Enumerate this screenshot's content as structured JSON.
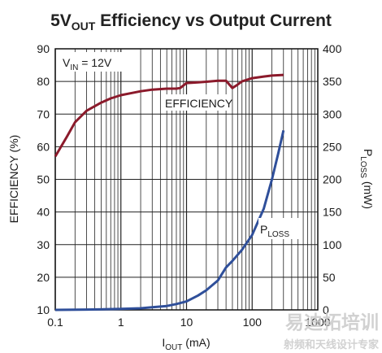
{
  "chart_data": {
    "type": "line",
    "title": {
      "main": "5V",
      "sub": "OUT",
      "rest": " Efficiency vs Output Current"
    },
    "x_axis": {
      "label_main": "I",
      "label_sub": "OUT",
      "label_rest": " (mA)",
      "scale": "log",
      "range": [
        0.1,
        1000
      ],
      "tick_labels": [
        "0.1",
        "1",
        "10",
        "100",
        "1000"
      ]
    },
    "y_left": {
      "label": "EFFICIENCY (%)",
      "range": [
        10,
        90
      ],
      "tick_labels": [
        "10",
        "20",
        "30",
        "40",
        "50",
        "60",
        "70",
        "80",
        "90"
      ]
    },
    "y_right": {
      "label_main": "P",
      "label_sub": "LOSS",
      "label_rest": " (mW)",
      "range": [
        0,
        400
      ],
      "tick_labels": [
        "0",
        "50",
        "100",
        "150",
        "200",
        "250",
        "300",
        "350",
        "400"
      ]
    },
    "annotation": {
      "main": "V",
      "sub": "IN",
      "rest": " = 12V"
    },
    "grid": true,
    "series": [
      {
        "name": "EFFICIENCY",
        "axis": "left",
        "color": "#8b1a2b",
        "x": [
          0.1,
          0.15,
          0.2,
          0.3,
          0.5,
          0.7,
          1,
          1.5,
          2,
          3,
          5,
          7,
          8,
          10,
          15,
          20,
          30,
          40,
          50,
          60,
          70,
          100,
          150,
          200,
          300
        ],
        "y": [
          57,
          63,
          67.5,
          71,
          73.5,
          74.8,
          75.8,
          76.5,
          77,
          77.5,
          77.8,
          77.8,
          78,
          79.5,
          79.7,
          79.9,
          80.2,
          80.2,
          78,
          79,
          80,
          81,
          81.5,
          81.8,
          82
        ]
      },
      {
        "name": "P",
        "name_sub": "LOSS",
        "axis": "right",
        "color": "#2f4f9a",
        "x": [
          0.1,
          0.3,
          1,
          2,
          3,
          5,
          7,
          10,
          15,
          20,
          30,
          40,
          50,
          70,
          100,
          150,
          200,
          250,
          300
        ],
        "y": [
          0,
          0.5,
          1.5,
          2.5,
          4,
          6,
          9,
          13,
          22,
          30,
          45,
          65,
          75,
          92,
          115,
          155,
          200,
          240,
          275
        ]
      }
    ],
    "watermark": {
      "top": "易迪拓培训",
      "bottom": "射频和天线设计专家"
    }
  }
}
